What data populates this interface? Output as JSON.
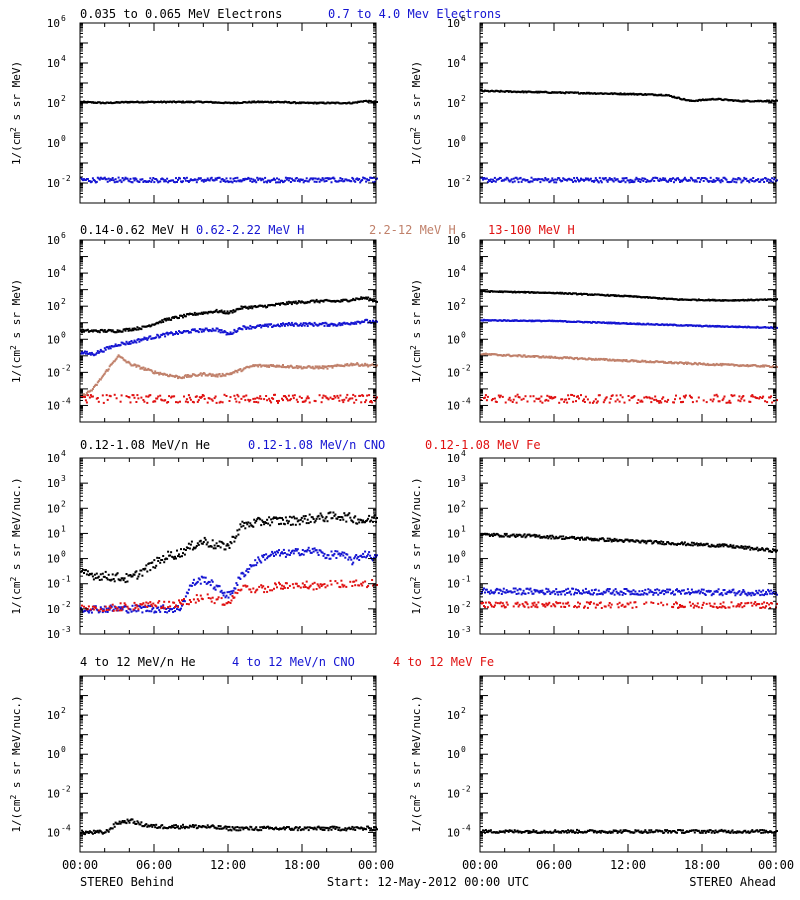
{
  "colors": {
    "black": "#000000",
    "blue": "#1414d2",
    "tan": "#c0806a",
    "red": "#e01010",
    "axis": "#000000"
  },
  "footer": {
    "left": "STEREO Behind",
    "center": "Start: 12-May-2012 00:00 UTC",
    "right": "STEREO Ahead"
  },
  "x_tick_labels": [
    "00:00",
    "06:00",
    "12:00",
    "18:00",
    "00:00"
  ],
  "chart_data": [
    {
      "type": "scatter",
      "panel": "electrons-behind",
      "yscale": "log",
      "ylim_exp": [
        -3,
        6
      ],
      "ytick_exps": [
        -2,
        0,
        2,
        4,
        6
      ],
      "ylabel_main": "1/(cm",
      "ylabel_sup": "2",
      "ylabel_rest": " s sr MeV)",
      "legend": [
        {
          "text": "0.035 to 0.065 MeV Electrons",
          "color": "black"
        },
        {
          "text": "0.7 to 4.0 Mev Electrons",
          "color": "blue"
        }
      ],
      "series": [
        {
          "name": "0.035 to 0.065 MeV Electrons",
          "color": "black",
          "hours": [
            0,
            2,
            4,
            6,
            8,
            10,
            12,
            14,
            16,
            18,
            20,
            22,
            23,
            24
          ],
          "log10": [
            2.05,
            2.0,
            2.05,
            2.05,
            2.05,
            2.05,
            2.0,
            2.05,
            2.05,
            2.0,
            2.0,
            2.0,
            2.1,
            2.05
          ],
          "noise": 0.03
        },
        {
          "name": "0.7 to 4.0 Mev Electrons",
          "color": "blue",
          "hours": [
            0,
            24
          ],
          "log10": [
            -1.85,
            -1.85
          ],
          "noise": 0.12
        }
      ]
    },
    {
      "type": "scatter",
      "panel": "electrons-ahead",
      "yscale": "log",
      "ylim_exp": [
        -3,
        6
      ],
      "ytick_exps": [
        -2,
        0,
        2,
        4,
        6
      ],
      "ylabel_main": "1/(cm",
      "ylabel_sup": "2",
      "ylabel_rest": " s sr MeV)",
      "legend": [],
      "series": [
        {
          "name": "0.035 to 0.065 MeV Electrons",
          "color": "black",
          "hours": [
            0,
            4,
            8,
            12,
            15,
            17,
            19,
            21,
            24
          ],
          "log10": [
            2.6,
            2.55,
            2.5,
            2.45,
            2.4,
            2.1,
            2.2,
            2.1,
            2.1
          ],
          "noise": 0.03
        },
        {
          "name": "0.7 to 4.0 Mev Electrons",
          "color": "blue",
          "hours": [
            0,
            24
          ],
          "log10": [
            -1.85,
            -1.85
          ],
          "noise": 0.12
        }
      ]
    },
    {
      "type": "scatter",
      "panel": "protons-behind",
      "yscale": "log",
      "ylim_exp": [
        -5,
        6
      ],
      "ytick_exps": [
        -4,
        -2,
        0,
        2,
        4,
        6
      ],
      "ylabel_main": "1/(cm",
      "ylabel_sup": "2",
      "ylabel_rest": " s sr MeV)",
      "legend": [
        {
          "text": "0.14-0.62 MeV H",
          "color": "black"
        },
        {
          "text": "0.62-2.22 MeV H",
          "color": "blue"
        },
        {
          "text": "2.2-12 MeV H",
          "color": "tan"
        },
        {
          "text": "13-100 MeV H",
          "color": "red"
        }
      ],
      "series": [
        {
          "name": "0.14-0.62 MeV H",
          "color": "black",
          "hours": [
            0,
            3,
            5,
            7,
            9,
            11,
            12,
            13,
            15,
            17,
            19,
            21,
            23,
            24
          ],
          "log10": [
            0.5,
            0.5,
            0.7,
            1.2,
            1.5,
            1.7,
            1.6,
            1.9,
            2.0,
            2.2,
            2.3,
            2.3,
            2.5,
            2.3
          ],
          "noise": 0.08
        },
        {
          "name": "0.62-2.22 MeV H",
          "color": "blue",
          "hours": [
            0,
            1,
            2,
            3,
            4,
            5,
            7,
            9,
            11,
            12,
            13,
            15,
            17,
            19,
            21,
            23,
            24
          ],
          "log10": [
            -0.8,
            -0.9,
            -0.6,
            -0.3,
            -0.2,
            0.0,
            0.3,
            0.5,
            0.6,
            0.3,
            0.7,
            0.8,
            0.9,
            0.9,
            0.9,
            1.1,
            1.0
          ],
          "noise": 0.1
        },
        {
          "name": "2.2-12 MeV H",
          "color": "tan",
          "hours": [
            0,
            1,
            2,
            3,
            4,
            6,
            8,
            10,
            11,
            12,
            14,
            16,
            18,
            20,
            22,
            24
          ],
          "log10": [
            -3.5,
            -3.0,
            -2.0,
            -1.0,
            -1.5,
            -2.0,
            -2.3,
            -2.1,
            -2.2,
            -2.1,
            -1.6,
            -1.6,
            -1.7,
            -1.7,
            -1.5,
            -1.6
          ],
          "noise": 0.08
        },
        {
          "name": "13-100 MeV H",
          "color": "red",
          "hours": [
            0,
            24
          ],
          "log10": [
            -3.6,
            -3.6
          ],
          "noise": 0.25
        }
      ]
    },
    {
      "type": "scatter",
      "panel": "protons-ahead",
      "yscale": "log",
      "ylim_exp": [
        -5,
        6
      ],
      "ytick_exps": [
        -4,
        -2,
        0,
        2,
        4,
        6
      ],
      "ylabel_main": "1/(cm",
      "ylabel_sup": "2",
      "ylabel_rest": " s sr MeV)",
      "legend": [],
      "series": [
        {
          "name": "0.14-0.62 MeV H",
          "color": "black",
          "hours": [
            0,
            6,
            12,
            16,
            20,
            24
          ],
          "log10": [
            2.9,
            2.8,
            2.6,
            2.4,
            2.35,
            2.4
          ],
          "noise": 0.03
        },
        {
          "name": "0.62-2.22 MeV H",
          "color": "blue",
          "hours": [
            0,
            6,
            12,
            18,
            24
          ],
          "log10": [
            1.15,
            1.1,
            0.95,
            0.8,
            0.7
          ],
          "noise": 0.03
        },
        {
          "name": "2.2-12 MeV H",
          "color": "tan",
          "hours": [
            0,
            6,
            12,
            18,
            24
          ],
          "log10": [
            -0.9,
            -1.1,
            -1.3,
            -1.5,
            -1.65
          ],
          "noise": 0.05
        },
        {
          "name": "13-100 MeV H",
          "color": "red",
          "hours": [
            0,
            24
          ],
          "log10": [
            -3.6,
            -3.6
          ],
          "noise": 0.25
        }
      ]
    },
    {
      "type": "scatter",
      "panel": "heavy-ions-behind",
      "yscale": "log",
      "ylim_exp": [
        -3,
        4
      ],
      "ytick_exps": [
        -3,
        -2,
        -1,
        0,
        1,
        2,
        3,
        4
      ],
      "ylabel_main": "1/(cm",
      "ylabel_sup": "2",
      "ylabel_rest": " s sr MeV/nuc.)",
      "legend": [
        {
          "text": "0.12-1.08 MeV/n He",
          "color": "black"
        },
        {
          "text": "0.12-1.08 MeV/n CNO",
          "color": "blue"
        },
        {
          "text": "0.12-1.08 MeV Fe",
          "color": "red"
        }
      ],
      "series": [
        {
          "name": "0.12-1.08 MeV/n He",
          "color": "black",
          "hours": [
            0,
            2,
            4,
            6,
            7,
            8,
            9,
            10,
            11,
            12,
            13,
            15,
            17,
            19,
            21,
            23,
            24
          ],
          "log10": [
            -0.6,
            -0.7,
            -0.8,
            -0.2,
            0.1,
            0.2,
            0.5,
            0.7,
            0.5,
            0.5,
            1.3,
            1.5,
            1.5,
            1.6,
            1.7,
            1.5,
            1.6
          ],
          "noise": 0.18
        },
        {
          "name": "0.12-1.08 MeV/n CNO",
          "color": "blue",
          "hours": [
            0,
            8,
            9,
            10,
            12,
            13,
            14,
            15,
            16,
            17,
            18,
            19,
            20,
            21,
            22,
            23,
            24
          ],
          "log10": [
            -2.0,
            -2.0,
            -1.0,
            -0.8,
            -1.5,
            -0.7,
            -0.2,
            0.1,
            0.2,
            0.2,
            0.3,
            0.3,
            0.1,
            0.2,
            -0.1,
            0.2,
            0.0
          ],
          "noise": 0.15
        },
        {
          "name": "0.12-1.08 MeV Fe",
          "color": "red",
          "hours": [
            0,
            8,
            10,
            12,
            13,
            15,
            17,
            19,
            21,
            23,
            24
          ],
          "log10": [
            -2.0,
            -1.8,
            -1.5,
            -1.8,
            -1.2,
            -1.2,
            -1.0,
            -1.1,
            -1.0,
            -1.0,
            -1.0
          ],
          "noise": 0.15
        }
      ]
    },
    {
      "type": "scatter",
      "panel": "heavy-ions-ahead",
      "yscale": "log",
      "ylim_exp": [
        -3,
        4
      ],
      "ytick_exps": [
        -3,
        -2,
        -1,
        0,
        1,
        2,
        3,
        4
      ],
      "ylabel_main": "1/(cm",
      "ylabel_sup": "2",
      "ylabel_rest": " s sr MeV/nuc.)",
      "legend": [],
      "series": [
        {
          "name": "0.12-1.08 MeV/n He",
          "color": "black",
          "hours": [
            0,
            4,
            8,
            12,
            16,
            20,
            24
          ],
          "log10": [
            0.95,
            0.9,
            0.8,
            0.7,
            0.6,
            0.5,
            0.3
          ],
          "noise": 0.06
        },
        {
          "name": "0.12-1.08 MeV/n CNO",
          "color": "blue",
          "hours": [
            0,
            24
          ],
          "log10": [
            -1.3,
            -1.35
          ],
          "noise": 0.12
        },
        {
          "name": "0.12-1.08 MeV Fe",
          "color": "red",
          "hours": [
            0,
            24
          ],
          "log10": [
            -1.85,
            -1.85
          ],
          "noise": 0.12
        }
      ]
    },
    {
      "type": "scatter",
      "panel": "high-energy-ions-behind",
      "yscale": "log",
      "ylim_exp": [
        -5,
        4
      ],
      "ytick_exps": [
        -4,
        -2,
        0,
        2
      ],
      "ylabel_main": "1/(cm",
      "ylabel_sup": "2",
      "ylabel_rest": " s sr MeV/nuc.)",
      "legend": [
        {
          "text": "4 to 12 MeV/n He",
          "color": "black"
        },
        {
          "text": "4 to 12 MeV/n CNO",
          "color": "blue"
        },
        {
          "text": "4 to 12 MeV Fe",
          "color": "red"
        }
      ],
      "series": [
        {
          "name": "4 to 12 MeV/n He",
          "color": "black",
          "hours": [
            0,
            2,
            3,
            4,
            5,
            6,
            8,
            10,
            12,
            14,
            16,
            18,
            20,
            22,
            24
          ],
          "log10": [
            -4.0,
            -4.0,
            -3.5,
            -3.4,
            -3.6,
            -3.7,
            -3.7,
            -3.7,
            -3.8,
            -3.8,
            -3.8,
            -3.8,
            -3.8,
            -3.8,
            -3.8
          ],
          "noise": 0.1
        }
      ]
    },
    {
      "type": "scatter",
      "panel": "high-energy-ions-ahead",
      "yscale": "log",
      "ylim_exp": [
        -5,
        4
      ],
      "ytick_exps": [
        -4,
        -2,
        0,
        2
      ],
      "ylabel_main": "1/(cm",
      "ylabel_sup": "2",
      "ylabel_rest": " s sr MeV/nuc.)",
      "legend": [],
      "series": [
        {
          "name": "4 to 12 MeV/n He",
          "color": "black",
          "hours": [
            0,
            24
          ],
          "log10": [
            -3.95,
            -3.95
          ],
          "noise": 0.08
        }
      ]
    }
  ]
}
